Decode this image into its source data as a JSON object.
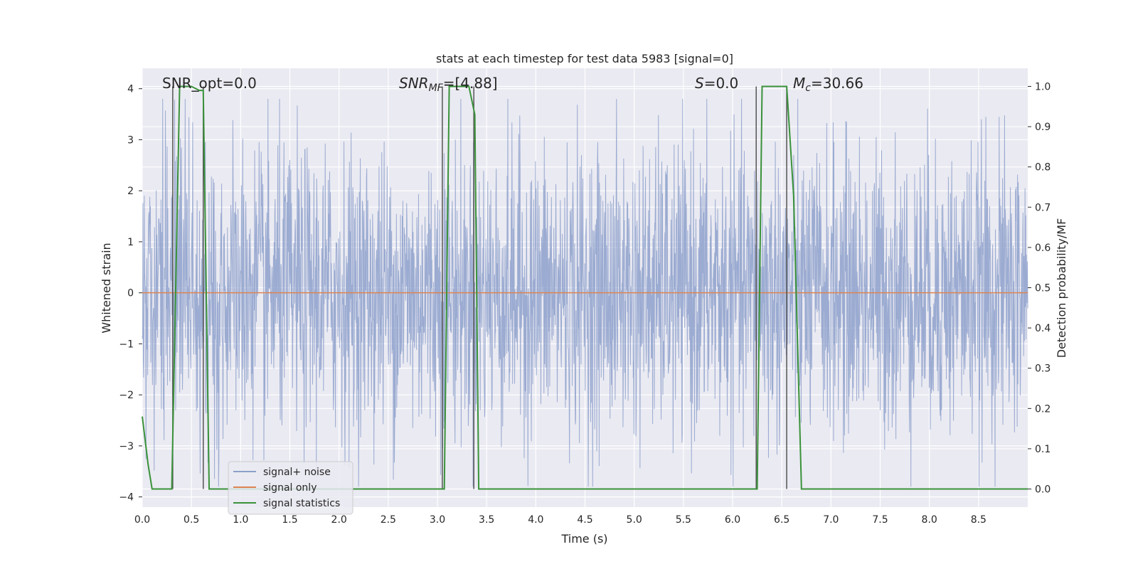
{
  "chart_data": {
    "type": "line",
    "title": "stats at each timestep for test data 5983 [signal=0]",
    "xlabel": "Time (s)",
    "ylabel": "Whitened strain",
    "ylabel_right": "Detection probability/MF",
    "xlim": [
      0.0,
      9.0
    ],
    "ylim": [
      -4.2,
      4.4
    ],
    "ylim_right": [
      -0.045,
      1.045
    ],
    "x_ticks": [
      "0.0",
      "0.5",
      "1.0",
      "1.5",
      "2.0",
      "2.5",
      "3.0",
      "3.5",
      "4.0",
      "4.5",
      "5.0",
      "5.5",
      "6.0",
      "6.5",
      "7.0",
      "7.5",
      "8.0",
      "8.5"
    ],
    "y_ticks": [
      "−4",
      "−3",
      "−2",
      "−1",
      "0",
      "1",
      "2",
      "3",
      "4"
    ],
    "y_ticks_right": [
      "0.0",
      "0.1",
      "0.2",
      "0.3",
      "0.4",
      "0.5",
      "0.6",
      "0.7",
      "0.8",
      "0.9",
      "1.0"
    ],
    "grid": true,
    "legend_position": "lower-left",
    "annotations": {
      "snr_opt": "SNR_opt=0.0",
      "snr_mf_base": "SNR",
      "snr_mf_sub": "MF",
      "snr_mf_value": "=[4.88]",
      "s_base": "S",
      "s_value": "=0.0",
      "mc_base": "M",
      "mc_sub": "c",
      "mc_value": "=30.66"
    },
    "series": [
      {
        "name": "signal+ noise",
        "color": "#8da0cb",
        "axis": "left",
        "noise_band": {
          "approx_range": [
            -3.8,
            3.8
          ],
          "typical_amplitude": 1.4
        }
      },
      {
        "name": "signal only",
        "color": "#dd8452",
        "axis": "left",
        "x": [
          0.0,
          9.0
        ],
        "y": [
          0.0,
          0.0
        ]
      },
      {
        "name": "signal statistics",
        "color": "#3a923a",
        "axis": "right",
        "x": [
          0.0,
          0.06,
          0.1,
          0.3,
          0.38,
          0.5,
          0.58,
          0.62,
          0.68,
          0.75,
          1.0,
          3.0,
          3.07,
          3.12,
          3.2,
          3.32,
          3.38,
          3.42,
          3.48,
          3.55,
          6.0,
          6.25,
          6.3,
          6.4,
          6.55,
          6.62,
          6.7,
          6.75,
          9.0
        ],
        "y": [
          0.18,
          0.06,
          0.0,
          0.0,
          1.0,
          1.0,
          0.99,
          0.99,
          0.0,
          0.0,
          0.0,
          0.0,
          0.0,
          1.0,
          1.0,
          1.0,
          0.93,
          0.0,
          0.0,
          0.0,
          0.0,
          0.0,
          1.0,
          1.0,
          1.0,
          0.73,
          0.0,
          0.0,
          0.0
        ]
      }
    ],
    "vertical_markers_x": [
      0.31,
      0.62,
      3.05,
      3.37,
      6.24,
      6.55
    ],
    "vertical_marker_color": "#555555"
  }
}
